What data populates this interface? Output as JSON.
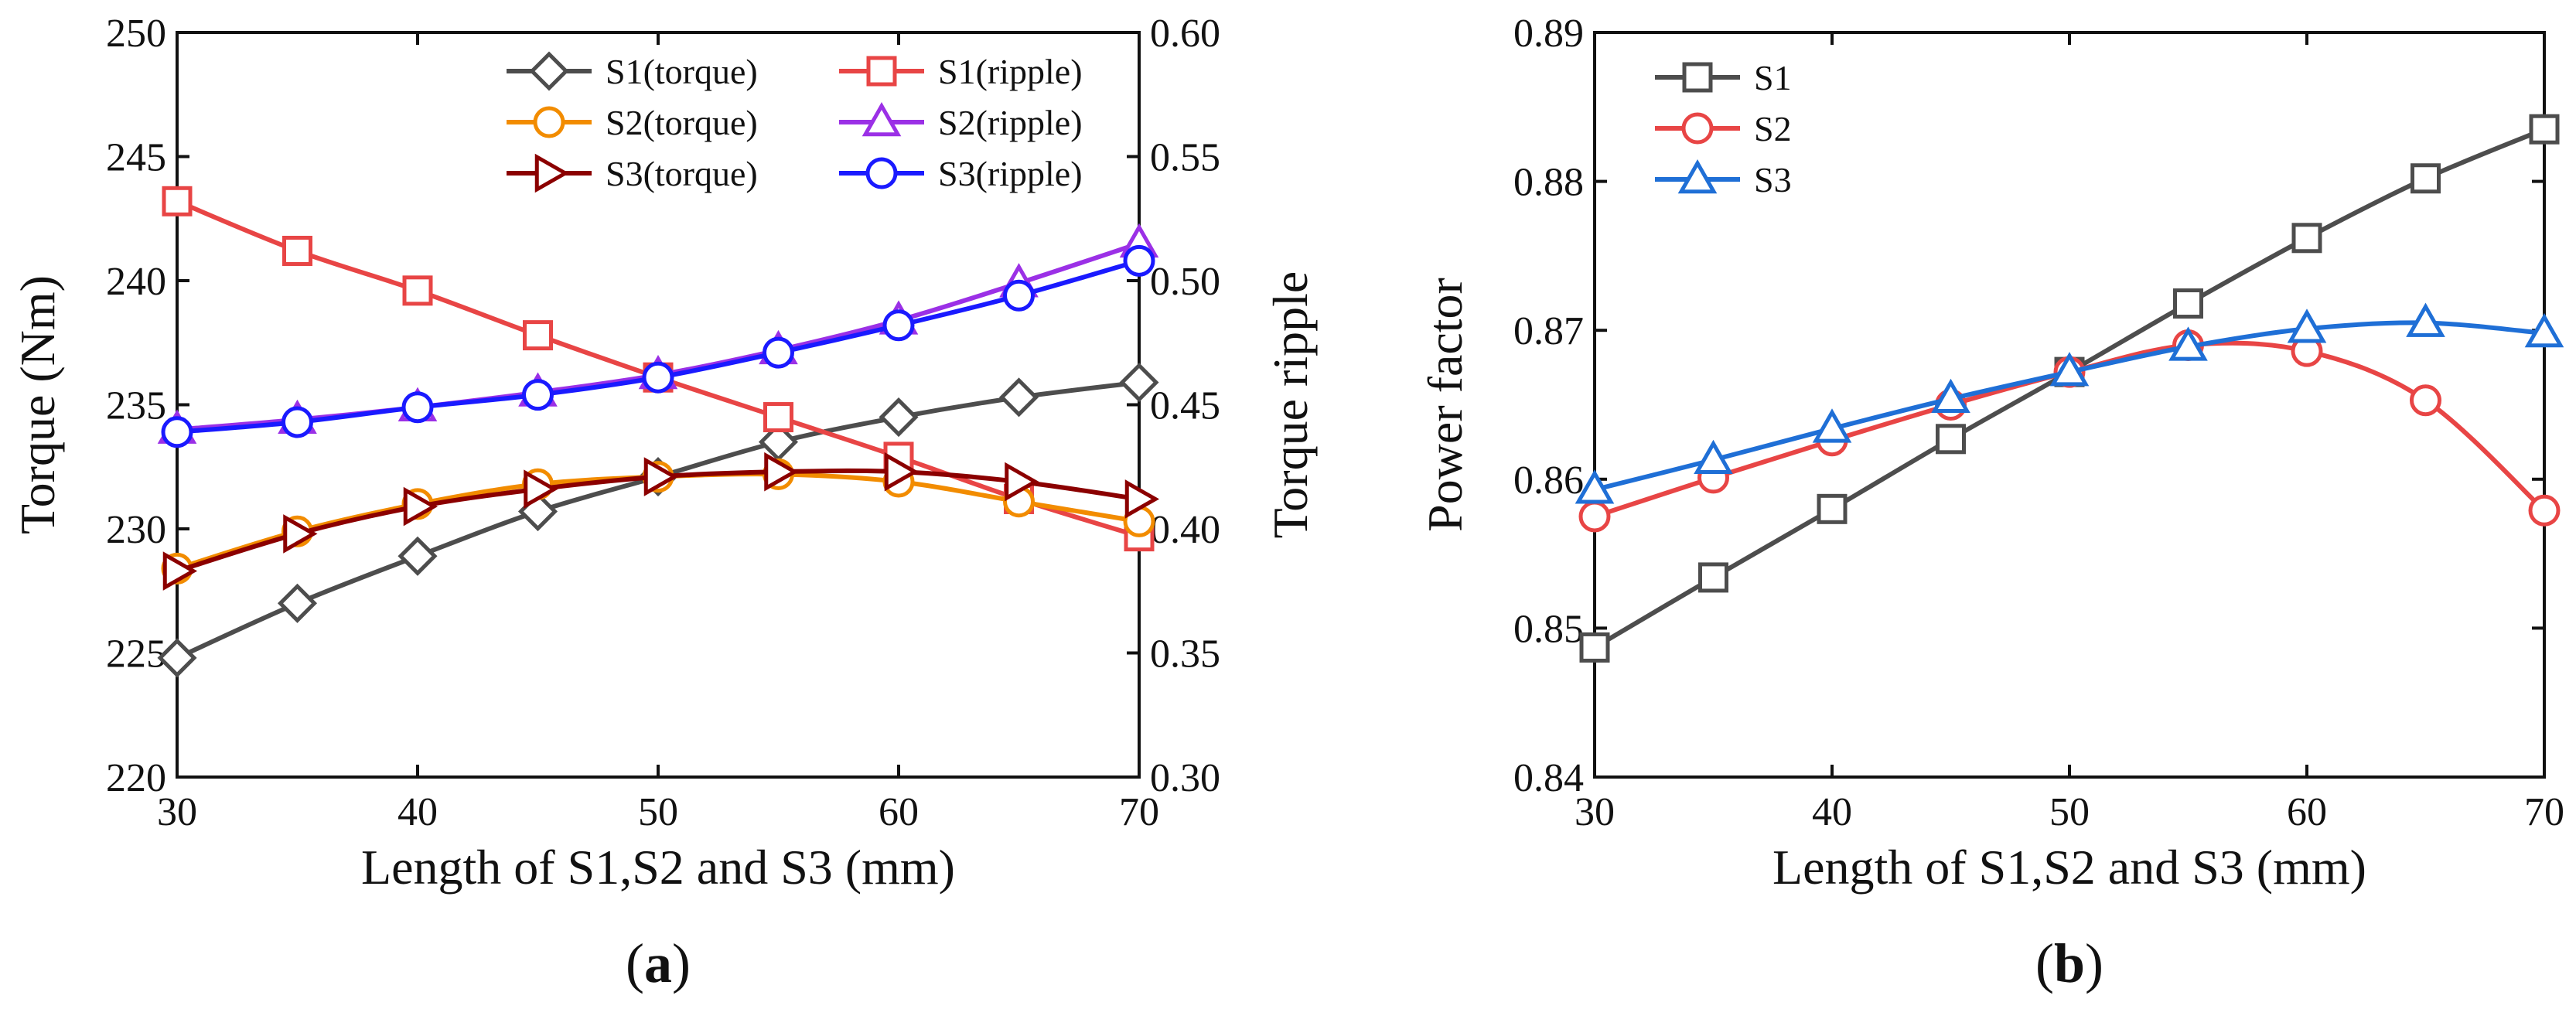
{
  "chart_data": [
    {
      "id": "a",
      "type": "line",
      "subtitle_open": "(",
      "subtitle": "a",
      "subtitle_close": ")",
      "xlabel": "Length of S1,S2 and S3 (mm)",
      "ylabel_left": "Torque (Nm)",
      "ylabel_right": "Torque ripple",
      "x": [
        30,
        35,
        40,
        45,
        50,
        55,
        60,
        65,
        70
      ],
      "xlim": [
        30,
        70
      ],
      "xticks": [
        30,
        40,
        50,
        60,
        70
      ],
      "ylim_left": [
        220,
        250
      ],
      "yticks_left": [
        220,
        225,
        230,
        235,
        240,
        245,
        250
      ],
      "ylim_right": [
        0.3,
        0.6
      ],
      "yticks_right": [
        "0.30",
        "0.35",
        "0.40",
        "0.45",
        "0.50",
        "0.55",
        "0.60"
      ],
      "legend": "top-right",
      "series": [
        {
          "name": "S1(torque)",
          "axis": "left",
          "color": "#4d4d4d",
          "marker": "diamond",
          "values": [
            224.8,
            227.0,
            228.9,
            230.7,
            232.1,
            233.5,
            234.5,
            235.3,
            235.9
          ]
        },
        {
          "name": "S1(ripple)",
          "axis": "right",
          "color": "#e84545",
          "marker": "square",
          "values": [
            0.532,
            0.512,
            0.496,
            0.478,
            0.461,
            0.445,
            0.429,
            0.412,
            0.397
          ]
        },
        {
          "name": "S2(torque)",
          "axis": "left",
          "color": "#f28c00",
          "marker": "circle",
          "values": [
            228.4,
            229.9,
            231.0,
            231.8,
            232.1,
            232.2,
            231.9,
            231.1,
            230.3
          ]
        },
        {
          "name": "S2(ripple)",
          "axis": "right",
          "color": "#9b30e6",
          "marker": "triangle-up",
          "values": [
            0.44,
            0.444,
            0.449,
            0.455,
            0.462,
            0.472,
            0.484,
            0.499,
            0.515
          ]
        },
        {
          "name": "S3(torque)",
          "axis": "left",
          "color": "#8b0000",
          "marker": "triangle-right",
          "values": [
            228.3,
            229.8,
            230.9,
            231.6,
            232.1,
            232.3,
            232.3,
            231.9,
            231.2
          ]
        },
        {
          "name": "S3(ripple)",
          "axis": "right",
          "color": "#1a1aff",
          "marker": "circle",
          "values": [
            0.439,
            0.443,
            0.449,
            0.454,
            0.461,
            0.471,
            0.482,
            0.494,
            0.508
          ]
        }
      ]
    },
    {
      "id": "b",
      "type": "line",
      "subtitle_open": "(",
      "subtitle": "b",
      "subtitle_close": ")",
      "xlabel": "Length of S1,S2 and S3 (mm)",
      "ylabel": "Power factor",
      "x": [
        30,
        35,
        40,
        45,
        50,
        55,
        60,
        65,
        70
      ],
      "xlim": [
        30,
        70
      ],
      "xticks": [
        30,
        40,
        50,
        60,
        70
      ],
      "ylim": [
        0.84,
        0.89
      ],
      "yticks": [
        "0.84",
        "0.85",
        "0.86",
        "0.87",
        "0.88",
        "0.89"
      ],
      "legend": "top-left",
      "series": [
        {
          "name": "S1",
          "color": "#4d4d4d",
          "marker": "square",
          "values": [
            0.8487,
            0.8534,
            0.858,
            0.8627,
            0.8672,
            0.8718,
            0.8762,
            0.8802,
            0.8835
          ]
        },
        {
          "name": "S2",
          "color": "#e84545",
          "marker": "circle",
          "values": [
            0.8575,
            0.8601,
            0.8626,
            0.865,
            0.8672,
            0.869,
            0.8686,
            0.8653,
            0.8579
          ]
        },
        {
          "name": "S3",
          "color": "#1f6fd6",
          "marker": "triangle-up",
          "values": [
            0.8593,
            0.8613,
            0.8634,
            0.8654,
            0.8672,
            0.8689,
            0.8701,
            0.8705,
            0.8698
          ]
        }
      ]
    }
  ]
}
